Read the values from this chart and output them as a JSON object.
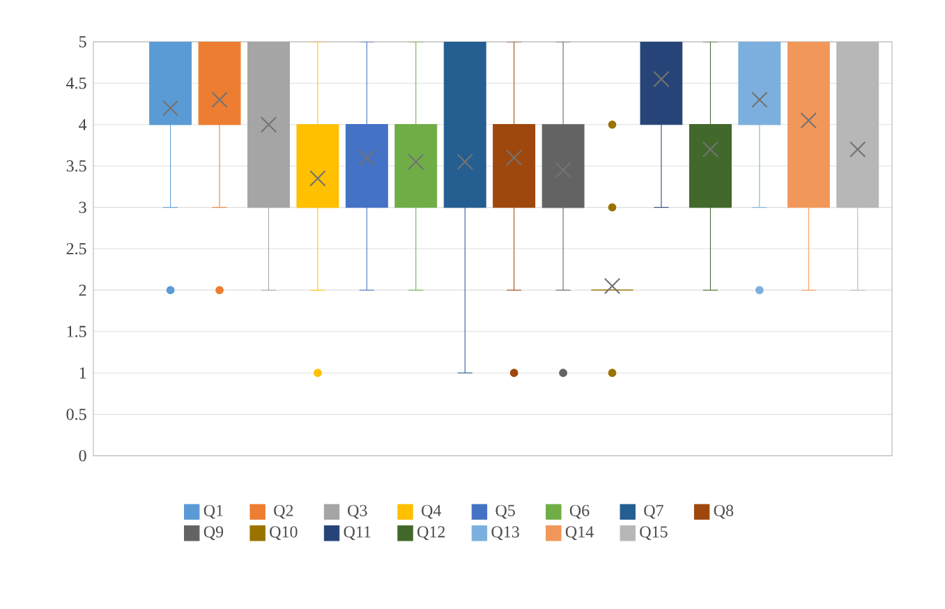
{
  "chart_data": {
    "type": "box",
    "categories": [
      null
    ],
    "ylim": [
      0,
      5
    ],
    "yticks": [
      0,
      0.5,
      1,
      1.5,
      2,
      2.5,
      3,
      3.5,
      4,
      4.5,
      5
    ],
    "grid": "y",
    "legend": "bottom",
    "marker": "circle",
    "series": [
      {
        "name": "Q1",
        "color": "#5b9bd5",
        "boxes": [
          {
            "low": 3,
            "q1": 4,
            "median": 4,
            "q3": 5,
            "high": 5,
            "mean": 4.2,
            "outliers": [
              2
            ]
          }
        ]
      },
      {
        "name": "Q2",
        "color": "#ed7d31",
        "boxes": [
          {
            "low": 3,
            "q1": 4,
            "median": 4,
            "q3": 5,
            "high": 5,
            "mean": 4.3,
            "outliers": [
              2
            ]
          }
        ]
      },
      {
        "name": "Q3",
        "color": "#a5a5a5",
        "boxes": [
          {
            "low": 2,
            "q1": 3,
            "median": 4,
            "q3": 5,
            "high": 5,
            "mean": 4.0
          }
        ]
      },
      {
        "name": "Q4",
        "color": "#ffc000",
        "boxes": [
          {
            "low": 2,
            "q1": 3,
            "median": 3,
            "q3": 4,
            "high": 5,
            "mean": 3.35,
            "outliers": [
              1
            ]
          }
        ]
      },
      {
        "name": "Q5",
        "color": "#4472c4",
        "boxes": [
          {
            "low": 2,
            "q1": 3,
            "median": 4,
            "q3": 4,
            "high": 5,
            "mean": 3.6
          }
        ]
      },
      {
        "name": "Q6",
        "color": "#70ad47",
        "boxes": [
          {
            "low": 2,
            "q1": 3,
            "median": 4,
            "q3": 4,
            "high": 5,
            "mean": 3.55
          }
        ]
      },
      {
        "name": "Q7",
        "color": "#255e91",
        "boxes": [
          {
            "low": 1,
            "q1": 3,
            "median": 4,
            "q3": 5,
            "high": 5,
            "mean": 3.55
          }
        ]
      },
      {
        "name": "Q8",
        "color": "#9e480e",
        "boxes": [
          {
            "low": 2,
            "q1": 3,
            "median": 4,
            "q3": 4,
            "high": 5,
            "mean": 3.6,
            "outliers": [
              1
            ]
          }
        ]
      },
      {
        "name": "Q9",
        "color": "#636363",
        "boxes": [
          {
            "low": 2,
            "q1": 3,
            "median": 3,
            "q3": 4,
            "high": 5,
            "mean": 3.45,
            "outliers": [
              1
            ]
          }
        ]
      },
      {
        "name": "Q10",
        "color": "#997300",
        "boxes": [
          {
            "low": 2,
            "q1": 2,
            "median": 2,
            "q3": 2,
            "high": 2,
            "mean": 2.05,
            "outliers": [
              4,
              3,
              1
            ]
          }
        ]
      },
      {
        "name": "Q11",
        "color": "#264478",
        "boxes": [
          {
            "low": 3,
            "q1": 4,
            "median": 5,
            "q3": 5,
            "high": 5,
            "mean": 4.55
          }
        ]
      },
      {
        "name": "Q12",
        "color": "#43682b",
        "boxes": [
          {
            "low": 2,
            "q1": 3,
            "median": 4,
            "q3": 4,
            "high": 5,
            "mean": 3.7
          }
        ]
      },
      {
        "name": "Q13",
        "color": "#7cafdd",
        "boxes": [
          {
            "low": 3,
            "q1": 4,
            "median": 4,
            "q3": 5,
            "high": 5,
            "mean": 4.3,
            "outliers": [
              2
            ]
          }
        ]
      },
      {
        "name": "Q14",
        "color": "#f1975a",
        "boxes": [
          {
            "low": 2,
            "q1": 3,
            "median": 4,
            "q3": 5,
            "high": 5,
            "mean": 4.05
          }
        ]
      },
      {
        "name": "Q15",
        "color": "#b7b7b7",
        "boxes": [
          {
            "low": 2,
            "q1": 3,
            "median": 4,
            "q3": 5,
            "high": 5,
            "mean": 3.7
          }
        ]
      }
    ]
  }
}
